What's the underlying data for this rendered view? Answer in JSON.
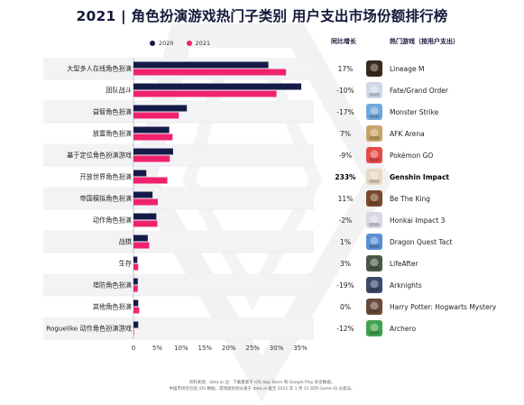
{
  "title": "2021 | 角色扮演游戏热门子类别 用户支出市场份额排行榜",
  "colors": {
    "s2020": "#141b48",
    "s2021": "#f0226e",
    "rowband": "#f3f3f6"
  },
  "right_headers": {
    "growth": "同比增长",
    "games": "热门游戏（按用户支出）"
  },
  "chart_data": {
    "type": "bar",
    "orientation": "horizontal",
    "categories": [
      "大型多人在线角色扮演",
      "团队战斗",
      "益智角色扮演",
      "放置角色扮演",
      "基于定位角色扮演游戏",
      "开放世界角色扮演",
      "帝国模拟角色扮演",
      "动作角色扮演",
      "战棋",
      "生存",
      "塔防角色扮演",
      "其他角色扮演",
      "Roguelike 动作角色扮演游戏"
    ],
    "series": [
      {
        "name": "2020",
        "values": [
          28.3,
          35.2,
          11.2,
          7.5,
          8.3,
          2.7,
          4.0,
          4.8,
          3.0,
          0.8,
          0.9,
          1.0,
          1.0
        ]
      },
      {
        "name": "2021",
        "values": [
          32.0,
          30.0,
          9.5,
          8.2,
          7.6,
          7.1,
          5.1,
          5.0,
          3.3,
          1.0,
          0.9,
          1.2,
          0.1
        ]
      }
    ],
    "xlim": [
      0,
      35
    ],
    "xticks": [
      "0",
      "5%",
      "10%",
      "15%",
      "20%",
      "25%",
      "30%",
      "35%"
    ],
    "legend_position": "top"
  },
  "rows": [
    {
      "growth": "17%",
      "game": "Lineage M",
      "icon": "lineage-m-icon",
      "bold": false
    },
    {
      "growth": "-10%",
      "game": "Fate/Grand Order",
      "icon": "fate-grand-order-icon",
      "bold": false
    },
    {
      "growth": "-17%",
      "game": "Monster Strike",
      "icon": "monster-strike-icon",
      "bold": false
    },
    {
      "growth": "7%",
      "game": "AFK Arena",
      "icon": "afk-arena-icon",
      "bold": false
    },
    {
      "growth": "-9%",
      "game": "Pokémon GO",
      "icon": "pokemon-go-icon",
      "bold": false
    },
    {
      "growth": "233%",
      "game": "Genshin Impact",
      "icon": "genshin-impact-icon",
      "bold": true
    },
    {
      "growth": "11%",
      "game": "Be The King",
      "icon": "be-the-king-icon",
      "bold": false
    },
    {
      "growth": "-2%",
      "game": "Honkai Impact 3",
      "icon": "honkai-impact-3-icon",
      "bold": false
    },
    {
      "growth": "1%",
      "game": "Dragon Quest Tact",
      "icon": "dragon-quest-tact-icon",
      "bold": false
    },
    {
      "growth": "3%",
      "game": "LifeAfter",
      "icon": "lifeafter-icon",
      "bold": false
    },
    {
      "growth": "-19%",
      "game": "Arknights",
      "icon": "arknights-icon",
      "bold": false
    },
    {
      "growth": "0%",
      "game": "Harry Potter: Hogwarts Mystery",
      "icon": "harry-potter-icon",
      "bold": false
    },
    {
      "growth": "-12%",
      "game": "Archero",
      "icon": "archero-icon",
      "bold": false
    }
  ],
  "icon_colors": [
    "#3a2a1e",
    "#cfd8e8",
    "#6fa8dc",
    "#c9a46a",
    "#e84a4a",
    "#e8d9c3",
    "#7a4a2a",
    "#d9d6e8",
    "#5a8fd6",
    "#4a5a4a",
    "#3a4a6a",
    "#6a4a3a",
    "#3fa34d"
  ],
  "source": [
    "资料来源：data.ai 注：下载量基于 iOS App Store 和 Google Play 综合数据。",
    "中国市场仅包括 iOS 数据。游戏类别划分基于 data.ai 截至 2022 年 1 月 31 日的 Game IQ 分类法。"
  ]
}
